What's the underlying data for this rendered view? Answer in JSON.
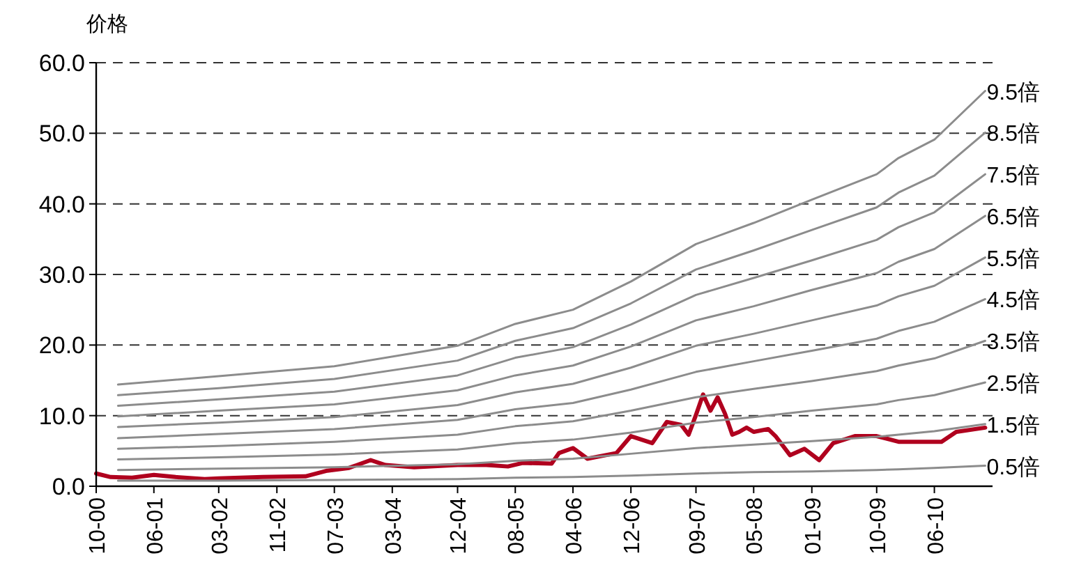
{
  "chart_data": {
    "type": "line",
    "ylabel": "价格",
    "ylim": [
      0,
      60
    ],
    "yticks": [
      {
        "value": 0,
        "label": "0.0"
      },
      {
        "value": 10,
        "label": "10.0"
      },
      {
        "value": 20,
        "label": "20.0"
      },
      {
        "value": 30,
        "label": "30.0"
      },
      {
        "value": 40,
        "label": "40.0"
      },
      {
        "value": 50,
        "label": "50.0"
      },
      {
        "value": 60,
        "label": "60.0"
      }
    ],
    "xlim": [
      "2000-10",
      "2011-02"
    ],
    "xticks": [
      {
        "value": "2000-10",
        "label": "10-00"
      },
      {
        "value": "2001-06",
        "label": "06-01"
      },
      {
        "value": "2002-03",
        "label": "03-02"
      },
      {
        "value": "2002-11",
        "label": "11-02"
      },
      {
        "value": "2003-07",
        "label": "07-03"
      },
      {
        "value": "2004-03",
        "label": "03-04"
      },
      {
        "value": "2004-12",
        "label": "12-04"
      },
      {
        "value": "2005-08",
        "label": "08-05"
      },
      {
        "value": "2006-04",
        "label": "04-06"
      },
      {
        "value": "2006-12",
        "label": "12-06"
      },
      {
        "value": "2007-09",
        "label": "09-07"
      },
      {
        "value": "2008-05",
        "label": "05-08"
      },
      {
        "value": "2009-01",
        "label": "01-09"
      },
      {
        "value": "2009-10",
        "label": "10-09"
      },
      {
        "value": "2010-06",
        "label": "06-10"
      }
    ],
    "grid": "y",
    "line_style": "solid",
    "marker": "none",
    "x": [
      "2001-01",
      "2002-03",
      "2003-07",
      "2004-12",
      "2005-08",
      "2006-04",
      "2006-12",
      "2007-09",
      "2008-05",
      "2009-01",
      "2009-10",
      "2010-01",
      "2010-06",
      "2011-01"
    ],
    "series": [
      {
        "name": "9.5倍",
        "color": "#8c8c8c",
        "values": [
          14.4,
          15.6,
          17.0,
          19.9,
          23.0,
          25.0,
          29.0,
          34.3,
          37.3,
          40.6,
          44.2,
          46.5,
          49.1,
          56.0
        ]
      },
      {
        "name": "8.5倍",
        "color": "#8c8c8c",
        "values": [
          12.9,
          13.9,
          15.2,
          17.8,
          20.6,
          22.4,
          25.9,
          30.7,
          33.4,
          36.3,
          39.5,
          41.6,
          44.0,
          50.1
        ]
      },
      {
        "name": "7.5倍",
        "color": "#8c8c8c",
        "values": [
          11.4,
          12.3,
          13.4,
          15.7,
          18.2,
          19.7,
          22.9,
          27.1,
          29.5,
          32.0,
          34.9,
          36.7,
          38.8,
          44.2
        ]
      },
      {
        "name": "6.5倍",
        "color": "#8c8c8c",
        "values": [
          9.9,
          10.7,
          11.6,
          13.6,
          15.7,
          17.1,
          19.8,
          23.5,
          25.5,
          27.8,
          30.2,
          31.8,
          33.6,
          38.3
        ]
      },
      {
        "name": "5.5倍",
        "color": "#8c8c8c",
        "values": [
          8.4,
          9.0,
          9.8,
          11.5,
          13.3,
          14.5,
          16.8,
          19.9,
          21.6,
          23.5,
          25.6,
          26.9,
          28.4,
          32.4
        ]
      },
      {
        "name": "4.5倍",
        "color": "#8c8c8c",
        "values": [
          6.8,
          7.4,
          8.1,
          9.4,
          10.9,
          11.8,
          13.7,
          16.2,
          17.7,
          19.2,
          20.9,
          22.0,
          23.3,
          26.5
        ]
      },
      {
        "name": "3.5倍",
        "color": "#8c8c8c",
        "values": [
          5.3,
          5.7,
          6.3,
          7.3,
          8.5,
          9.2,
          10.7,
          12.6,
          13.8,
          14.9,
          16.3,
          17.1,
          18.1,
          20.6
        ]
      },
      {
        "name": "2.5倍",
        "color": "#8c8c8c",
        "values": [
          3.8,
          4.1,
          4.5,
          5.2,
          6.1,
          6.6,
          7.6,
          9.0,
          9.8,
          10.7,
          11.6,
          12.2,
          12.9,
          14.7
        ]
      },
      {
        "name": "1.5倍",
        "color": "#8c8c8c",
        "values": [
          2.3,
          2.5,
          2.7,
          3.1,
          3.6,
          3.9,
          4.6,
          5.4,
          5.9,
          6.4,
          7.0,
          7.3,
          7.8,
          8.8
        ]
      },
      {
        "name": "0.5倍",
        "color": "#8c8c8c",
        "values": [
          0.8,
          0.8,
          0.9,
          1.0,
          1.2,
          1.3,
          1.5,
          1.8,
          2.0,
          2.1,
          2.3,
          2.4,
          2.6,
          2.9
        ]
      },
      {
        "color": "#b0001e",
        "x": [
          "2000-10",
          "2000-12",
          "2001-03",
          "2001-06",
          "2001-09",
          "2002-01",
          "2002-03",
          "2002-09",
          "2003-03",
          "2003-06",
          "2003-09",
          "2003-12",
          "2004-02",
          "2004-06",
          "2004-12",
          "2005-04",
          "2005-07",
          "2005-09",
          "2006-01",
          "2006-02",
          "2006-04",
          "2006-06",
          "2006-10",
          "2006-12",
          "2007-03",
          "2007-05",
          "2007-07",
          "2007-08",
          "2007-09",
          "2007-10",
          "2007-11",
          "2007-12",
          "2008-01",
          "2008-02",
          "2008-03",
          "2008-04",
          "2008-05",
          "2008-07",
          "2008-08",
          "2008-10",
          "2008-12",
          "2009-02",
          "2009-04",
          "2009-07",
          "2009-10",
          "2010-01",
          "2010-04",
          "2010-07",
          "2010-09",
          "2011-01"
        ],
        "values": [
          1.8,
          1.3,
          1.2,
          1.6,
          1.3,
          1.0,
          1.1,
          1.3,
          1.4,
          2.2,
          2.6,
          3.7,
          3.0,
          2.7,
          3.0,
          3.0,
          2.8,
          3.3,
          3.2,
          4.7,
          5.4,
          3.9,
          4.7,
          7.1,
          6.1,
          9.1,
          8.7,
          7.3,
          10.1,
          13.0,
          10.7,
          12.6,
          10.3,
          7.3,
          7.7,
          8.3,
          7.7,
          8.1,
          7.1,
          4.4,
          5.3,
          3.7,
          6.1,
          7.1,
          7.1,
          6.3,
          6.3,
          6.3,
          7.7,
          8.3
        ]
      }
    ]
  }
}
